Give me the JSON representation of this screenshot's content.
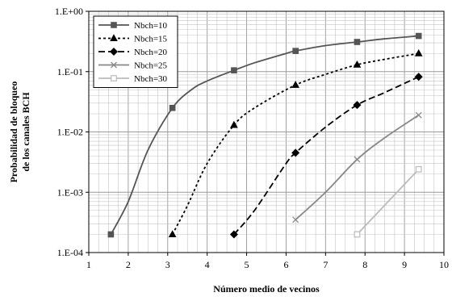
{
  "chart_data": {
    "type": "line",
    "title": "",
    "xlabel": "Número medio de vecinos",
    "ylabel_lines": [
      "Probabilidad de bloqueo",
      "de los canales BCH"
    ],
    "xlim": [
      1,
      10
    ],
    "ylim": [
      0.0001,
      1
    ],
    "y_scale": "log",
    "grid": true,
    "legend_position": "top-left",
    "x_ticks": [
      1,
      2,
      3,
      4,
      5,
      6,
      7,
      8,
      9,
      10
    ],
    "x_tick_labels": [
      "1",
      "2",
      "3",
      "4",
      "5",
      "6",
      "7",
      "8",
      "9",
      "10"
    ],
    "y_ticks": [
      0.0001,
      0.001,
      0.01,
      0.1,
      1
    ],
    "y_tick_labels": [
      "1.E-04",
      "1.E-03",
      "1.E-02",
      "1.E-01",
      "1.E+00"
    ],
    "series": [
      {
        "name": "Nbch=10",
        "color": "#555555",
        "dash": "solid",
        "marker": "square-filled",
        "x": [
          1.56,
          2.0,
          2.5,
          3.12,
          3.6,
          4.0,
          4.68,
          5.2,
          6.0,
          6.24,
          7.0,
          7.8,
          8.5,
          9.36
        ],
        "y": [
          0.0002,
          0.0007,
          0.005,
          0.025,
          0.05,
          0.07,
          0.105,
          0.14,
          0.2,
          0.22,
          0.27,
          0.31,
          0.35,
          0.39
        ],
        "markers_at": [
          0,
          3,
          6,
          9,
          11,
          13
        ]
      },
      {
        "name": "Nbch=15",
        "color": "#000000",
        "dash": "dotted",
        "marker": "triangle-filled",
        "x": [
          3.12,
          3.5,
          4.0,
          4.68,
          5.2,
          6.24,
          7.0,
          7.8,
          8.5,
          9.36
        ],
        "y": [
          0.0002,
          0.0006,
          0.003,
          0.013,
          0.025,
          0.06,
          0.09,
          0.13,
          0.16,
          0.2
        ],
        "markers_at": [
          0,
          3,
          5,
          7,
          9
        ]
      },
      {
        "name": "Nbch=20",
        "color": "#000000",
        "dash": "dashed",
        "marker": "diamond-filled",
        "x": [
          4.68,
          5.2,
          6.0,
          6.24,
          7.0,
          7.8,
          8.5,
          9.36
        ],
        "y": [
          0.0002,
          0.0005,
          0.003,
          0.0045,
          0.012,
          0.028,
          0.045,
          0.082
        ],
        "markers_at": [
          0,
          3,
          5,
          7
        ]
      },
      {
        "name": "Nbch=25",
        "color": "#888888",
        "dash": "solid",
        "marker": "x",
        "x": [
          6.24,
          7.0,
          7.8,
          8.5,
          9.36
        ],
        "y": [
          0.00035,
          0.001,
          0.0035,
          0.008,
          0.019
        ],
        "markers_at": [
          0,
          2,
          4
        ]
      },
      {
        "name": "Nbch=30",
        "color": "#bbbbbb",
        "dash": "solid",
        "marker": "square-open",
        "x": [
          7.8,
          9.36
        ],
        "y": [
          0.0002,
          0.0024
        ],
        "markers_at": [
          0,
          1
        ]
      }
    ]
  }
}
